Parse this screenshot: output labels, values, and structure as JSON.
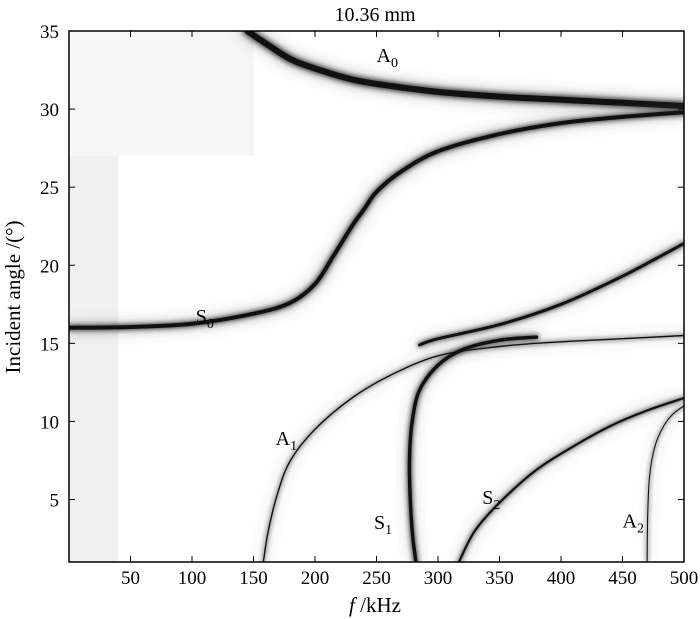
{
  "chart_data": {
    "type": "line",
    "title": "10.36 mm",
    "xlabel_italic": "f",
    "xlabel_rest": " /kHz",
    "ylabel": "Incident angle /(°)",
    "xlim": [
      0,
      500
    ],
    "ylim": [
      1,
      35
    ],
    "xticks": [
      50,
      100,
      150,
      200,
      250,
      300,
      350,
      400,
      450,
      500
    ],
    "yticks": [
      5,
      10,
      15,
      20,
      25,
      30,
      35
    ],
    "grid": false,
    "colormap": "grayscale-intensity",
    "series": [
      {
        "name": "A0",
        "label_main": "A",
        "label_sub": "0",
        "label_at": [
          250,
          33
        ],
        "x": [
          145,
          160,
          180,
          200,
          230,
          260,
          300,
          350,
          400,
          450,
          500
        ],
        "y": [
          35,
          34.2,
          33.2,
          32.6,
          31.9,
          31.5,
          31.1,
          30.8,
          30.6,
          30.4,
          30.2
        ]
      },
      {
        "name": "S0",
        "label_main": "S",
        "label_sub": "0",
        "label_at": [
          103,
          16.3
        ],
        "x": [
          0,
          50,
          100,
          150,
          180,
          200,
          215,
          230,
          240,
          250,
          270,
          300,
          350,
          400,
          450,
          500
        ],
        "y": [
          16,
          16.05,
          16.25,
          16.9,
          17.6,
          18.8,
          20.6,
          22.5,
          23.6,
          24.7,
          26.0,
          27.3,
          28.4,
          29.1,
          29.5,
          29.8
        ]
      },
      {
        "name": "",
        "label_main": "",
        "label_sub": "",
        "label_at": null,
        "x": [
          285,
          300,
          350,
          400,
          450,
          500
        ],
        "y": [
          14.9,
          15.3,
          16.2,
          17.5,
          19.3,
          21.4
        ]
      },
      {
        "name": "A1",
        "label_main": "A",
        "label_sub": "1",
        "label_at": [
          168,
          8.5
        ],
        "x": [
          158,
          162,
          170,
          180,
          200,
          230,
          260,
          300,
          350,
          400,
          450,
          500
        ],
        "y": [
          1,
          3.0,
          5.5,
          7.5,
          9.5,
          11.5,
          12.9,
          14.2,
          14.8,
          15.1,
          15.3,
          15.5
        ]
      },
      {
        "name": "S1",
        "label_main": "S",
        "label_sub": "1",
        "label_at": [
          248,
          3.1
        ],
        "x": [
          282,
          279,
          277,
          277,
          279,
          285,
          300,
          320,
          350,
          380
        ],
        "y": [
          1,
          3.0,
          6.0,
          8.0,
          10.0,
          12.0,
          13.6,
          14.6,
          15.2,
          15.4
        ]
      },
      {
        "name": "S2",
        "label_main": "S",
        "label_sub": "2",
        "label_at": [
          336,
          4.7
        ],
        "x": [
          317,
          330,
          350,
          380,
          410,
          440,
          470,
          500
        ],
        "y": [
          1,
          3.0,
          4.8,
          6.9,
          8.4,
          9.7,
          10.7,
          11.5
        ]
      },
      {
        "name": "A2",
        "label_main": "A",
        "label_sub": "2",
        "label_at": [
          450,
          3.2
        ],
        "x": [
          470,
          470.5,
          472,
          476,
          482,
          490,
          500
        ],
        "y": [
          1,
          4.0,
          6.5,
          8.3,
          9.5,
          10.4,
          11.0
        ]
      }
    ]
  }
}
